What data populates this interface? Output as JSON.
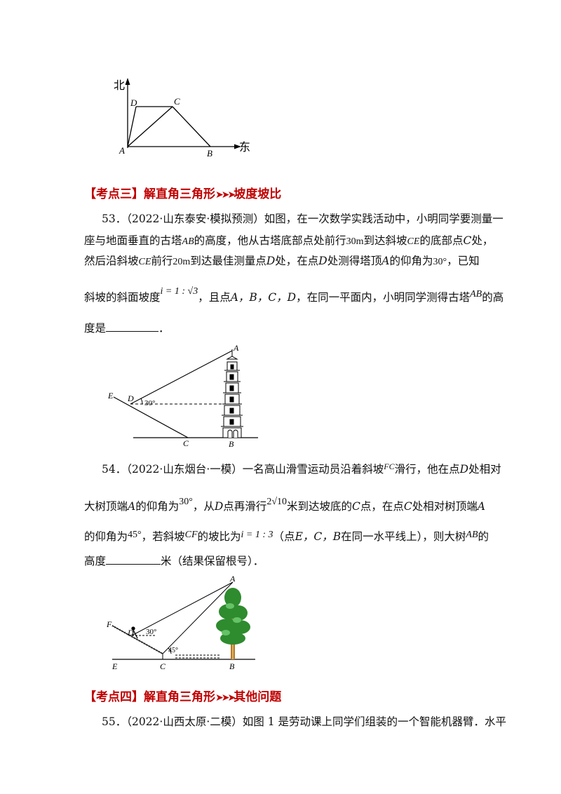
{
  "fig1": {
    "north_label": "北",
    "east_label": "东",
    "points": {
      "A": "A",
      "B": "B",
      "C": "C",
      "D": "D"
    }
  },
  "section3": {
    "bracket": "【考点三】解直角三角形",
    "topic": "坡度坡比"
  },
  "q53": {
    "line1": "53．（2022·山东泰安·模拟预测）如图，在一次数学实践活动中，小明同学要测量一",
    "line2_a": "座与地面垂直的古塔",
    "line2_ab": "AB",
    "line2_b": "的高度，他从古塔底部点处前行",
    "line2_30m": "30m",
    "line2_c": "到达斜坡",
    "line2_ce": "CE",
    "line2_d": "的底部点",
    "line2_C": "C",
    "line2_e": "处，",
    "line3_a": "然后沿斜坡",
    "line3_ce": "CE",
    "line3_b": "前行",
    "line3_20m": "20m",
    "line3_c": "到达最佳测量点",
    "line3_D": "D",
    "line3_d": "处，在点",
    "line3_D2": "D",
    "line3_e": "处测得塔顶",
    "line3_A": "A",
    "line3_f": "的仰角为",
    "line3_30": "30°",
    "line3_g": "，已知",
    "line4_a": "斜坡的斜面坡度",
    "line4_i": "i = 1 : √3",
    "line4_b": "，且点",
    "line4_pts": "A，B，C，D",
    "line4_c": "，在同一平面内，小明同学测得古塔",
    "line4_ab": "AB",
    "line4_d": "的高",
    "line5_a": "度是",
    "line5_b": "．",
    "fig": {
      "A": "A",
      "B": "B",
      "C": "C",
      "D": "D",
      "E": "E",
      "angle": "30°"
    }
  },
  "q54": {
    "line1_a": "54．（2022·山东烟台·一模）一名高山滑雪运动员沿着斜坡",
    "line1_fc": "FC",
    "line1_b": "滑行，他在点",
    "line1_D": "D",
    "line1_c": "处相对",
    "line2_a": "大树顶端",
    "line2_A": "A",
    "line2_b": "的仰角为",
    "line2_30": "30°",
    "line2_c": "，从",
    "line2_D": "D",
    "line2_d": "点再滑行",
    "line2_val": "2√10",
    "line2_e": "米到达坡底的",
    "line2_C": "C",
    "line2_f": "点，在点",
    "line2_C2": "C",
    "line2_g": "处相对树顶端",
    "line2_A2": "A",
    "line3_a": "的仰角为",
    "line3_45": "45°",
    "line3_b": "，若斜坡",
    "line3_cf": "CF",
    "line3_c": "的坡比为",
    "line3_i": "i = 1 : 3",
    "line3_d": "（点",
    "line3_pts": "E，C，B",
    "line3_e": "在同一水平线上），则大树",
    "line3_ab": "AB",
    "line3_f": "的",
    "line4_a": "高度",
    "line4_b": "米（结果保留根号）．",
    "fig": {
      "A": "A",
      "B": "B",
      "C": "C",
      "D": "D",
      "E": "E",
      "F": "F",
      "angle30": "30°",
      "angle45": "45°"
    }
  },
  "section4": {
    "bracket": "【考点四】解直角三角形",
    "topic": "其他问题"
  },
  "q55": {
    "line1": "55．（2022·山西太原·二模）如图 1 是劳动课上同学们组装的一个智能机器臂．水平"
  }
}
